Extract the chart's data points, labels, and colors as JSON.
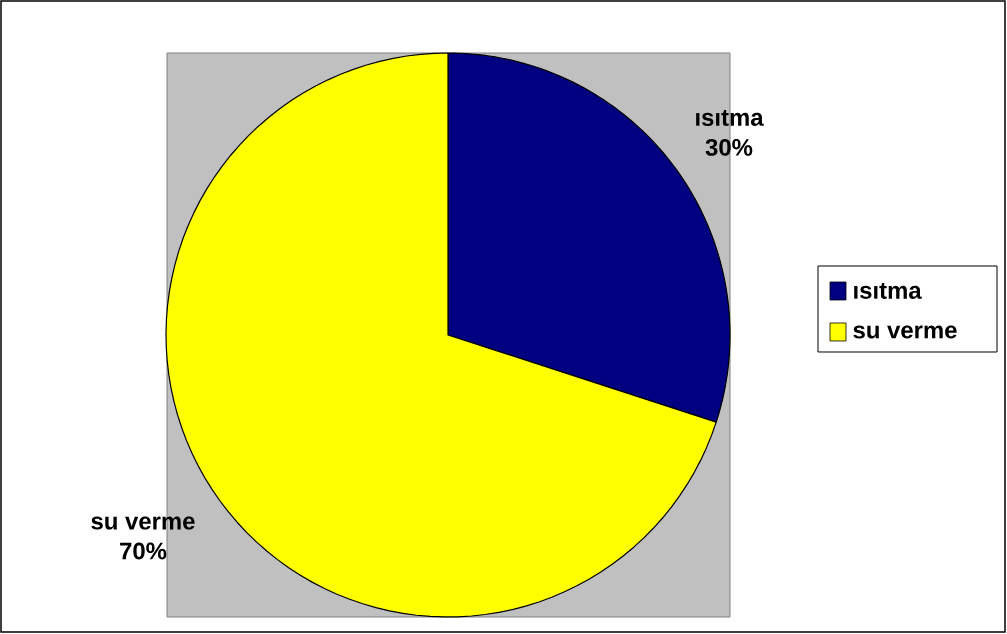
{
  "chart_data": {
    "type": "pie",
    "categories": [
      "ısıtma",
      "su verme"
    ],
    "values": [
      30,
      70
    ],
    "colors": [
      "#000080",
      "#ffff00"
    ],
    "value_labels": [
      "30%",
      "70%"
    ],
    "legend": "right"
  }
}
